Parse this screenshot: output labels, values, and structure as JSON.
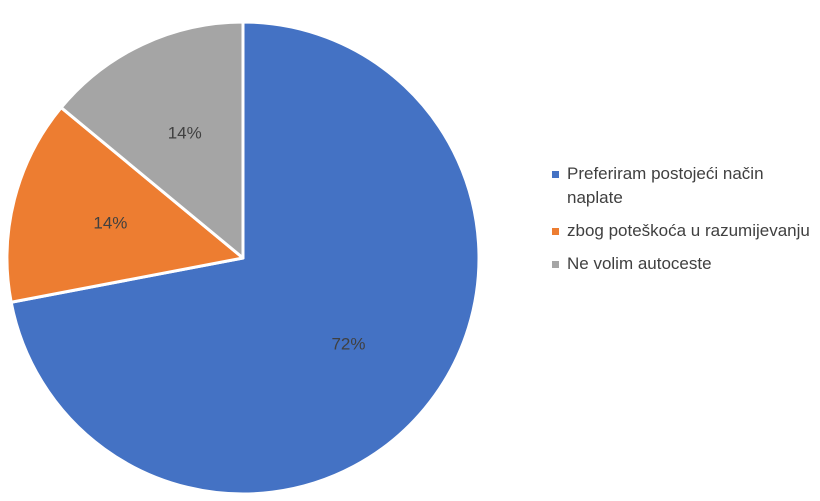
{
  "chart_data": {
    "type": "pie",
    "slices": [
      {
        "label": "Preferiram postojeći način naplate",
        "value": 72,
        "data_label": "72%",
        "color": "#4472C4"
      },
      {
        "label": "zbog poteškoća u razumijevanju",
        "value": 14,
        "data_label": "14%",
        "color": "#ED7D31"
      },
      {
        "label": "Ne volim autoceste",
        "value": 14,
        "data_label": "14%",
        "color": "#A5A5A5"
      }
    ],
    "legend": {
      "placement": "right",
      "entries": [
        "Preferiram postojeći način naplate",
        "zbog poteškoća u razumijevanju",
        "Ne volim autoceste"
      ]
    },
    "start": "12 o'clock",
    "direction": "clockwise"
  }
}
